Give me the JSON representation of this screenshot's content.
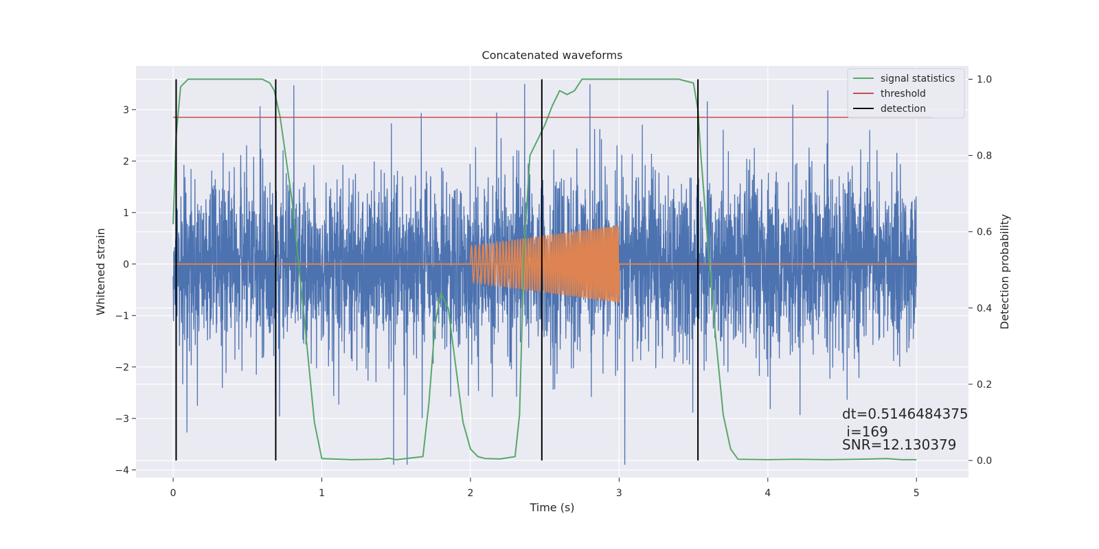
{
  "chart_data": {
    "type": "line",
    "title": "Concatenated waveforms",
    "xlabel": "Time (s)",
    "ylabel": "Whitened strain",
    "y2label": "Detection probability",
    "xlim": [
      -0.25,
      5.35
    ],
    "ylim": [
      -4.15,
      3.85
    ],
    "y2lim": [
      -0.045,
      1.035
    ],
    "x_ticks": [
      0,
      1,
      2,
      3,
      4,
      5
    ],
    "y_ticks": [
      -4,
      -3,
      -2,
      -1,
      0,
      1,
      2,
      3
    ],
    "y2_ticks": [
      0.0,
      0.2,
      0.4,
      0.6,
      0.8,
      1.0
    ],
    "y2_tick_labels": [
      "0.0",
      "0.2",
      "0.4",
      "0.6",
      "0.8",
      "1.0"
    ],
    "grid": true,
    "legend_position": "top-right",
    "colors": {
      "strain": "#4c72b0",
      "injection": "#dd8452",
      "signal_statistics": "#55a868",
      "threshold": "#c44e52",
      "detection": "#000000",
      "background": "#eaeaf2"
    },
    "series": [
      {
        "id": "strain",
        "description_free": true,
        "x_range": [
          0,
          5
        ],
        "noise_amplitude_typical": 1.2,
        "noise_extremes": [
          -3.9,
          3.5
        ]
      },
      {
        "id": "injection",
        "x_range": [
          2.0,
          3.0
        ],
        "amplitude_start": 0.35,
        "amplitude_end": 0.75
      },
      {
        "id": "signal_statistics",
        "name": "signal statistics",
        "axis": "right",
        "x": [
          0.0,
          0.02,
          0.05,
          0.1,
          0.6,
          0.65,
          0.68,
          0.72,
          0.8,
          0.88,
          0.95,
          1.0,
          1.2,
          1.4,
          1.45,
          1.5,
          1.68,
          1.72,
          1.76,
          1.8,
          1.85,
          1.9,
          1.95,
          2.0,
          2.05,
          2.1,
          2.2,
          2.3,
          2.33,
          2.36,
          2.4,
          2.45,
          2.5,
          2.55,
          2.6,
          2.65,
          2.7,
          2.75,
          2.8,
          3.4,
          3.5,
          3.53,
          3.55,
          3.6,
          3.65,
          3.7,
          3.75,
          3.8,
          4.0,
          4.2,
          4.4,
          4.6,
          4.8,
          4.9,
          5.0
        ],
        "y": [
          0.62,
          0.85,
          0.98,
          1.0,
          1.0,
          0.99,
          0.97,
          0.9,
          0.68,
          0.38,
          0.1,
          0.005,
          0.002,
          0.003,
          0.006,
          0.002,
          0.01,
          0.15,
          0.35,
          0.44,
          0.4,
          0.25,
          0.1,
          0.03,
          0.01,
          0.005,
          0.004,
          0.01,
          0.12,
          0.55,
          0.8,
          0.84,
          0.88,
          0.93,
          0.97,
          0.96,
          0.97,
          1.0,
          1.0,
          1.0,
          0.99,
          0.92,
          0.8,
          0.55,
          0.32,
          0.12,
          0.03,
          0.003,
          0.002,
          0.003,
          0.002,
          0.003,
          0.005,
          0.002,
          0.002
        ]
      },
      {
        "id": "threshold",
        "name": "threshold",
        "axis": "right",
        "x": [
          0.0,
          5.1
        ],
        "y": [
          0.9,
          0.9
        ]
      },
      {
        "id": "detection",
        "name": "detection",
        "axis": "right",
        "x_positions": [
          0.02,
          0.69,
          2.48,
          3.53
        ],
        "y_range": [
          0.0,
          1.0
        ]
      }
    ],
    "annotations": [
      {
        "text": "dt=0.5146484375",
        "x": 4.5,
        "y": -3.0
      },
      {
        "text": " i=169",
        "x": 4.5,
        "y": -3.35
      },
      {
        "text": "SNR=12.130379",
        "x": 4.5,
        "y": -3.6
      }
    ]
  }
}
